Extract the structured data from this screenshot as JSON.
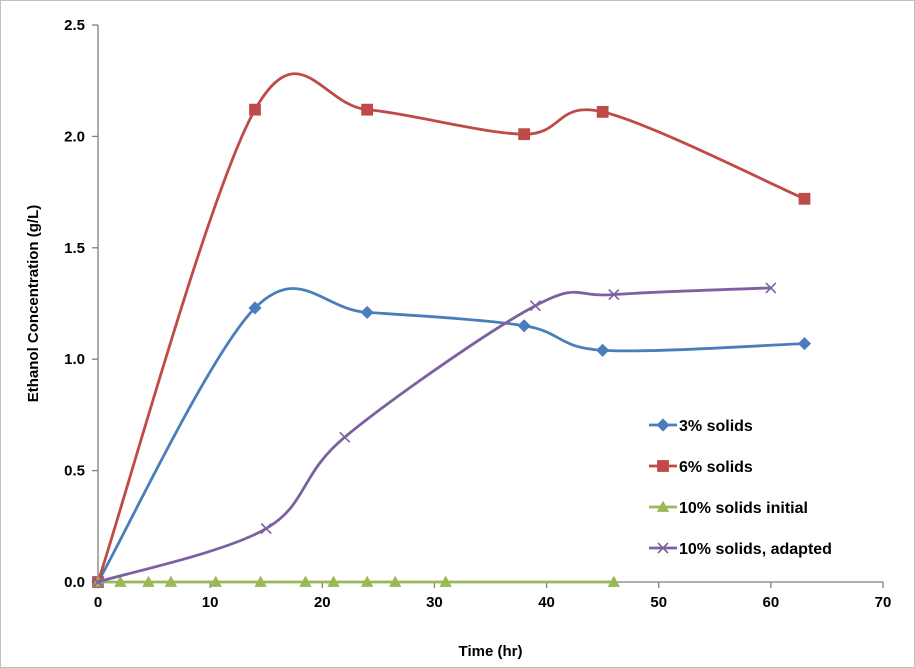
{
  "chart_data": {
    "type": "line",
    "title": "",
    "xlabel": "Time (hr)",
    "ylabel": "Ethanol Concentration (g/L)",
    "xlim": [
      0,
      70
    ],
    "ylim": [
      0,
      2.5
    ],
    "x_ticks": [
      0,
      10,
      20,
      30,
      40,
      50,
      60,
      70
    ],
    "y_ticks": [
      0,
      0.5,
      1.0,
      1.5,
      2.0,
      2.5
    ],
    "x_tick_labels": [
      "0",
      "10",
      "20",
      "30",
      "40",
      "50",
      "60",
      "70"
    ],
    "y_tick_labels": [
      "0.0",
      "0.5",
      "1.0",
      "1.5",
      "2.0",
      "2.5"
    ],
    "grid": false,
    "smooth_lines": true,
    "legend_position": "right",
    "series": [
      {
        "name": "3% solids",
        "color": "#4a7ebb",
        "marker": "diamond",
        "x": [
          0,
          14,
          24,
          38,
          45,
          63
        ],
        "y": [
          0.0,
          1.23,
          1.21,
          1.15,
          1.04,
          1.07
        ]
      },
      {
        "name": "6% solids",
        "color": "#be4b48",
        "marker": "square",
        "x": [
          0,
          14,
          24,
          38,
          45,
          63
        ],
        "y": [
          0.0,
          2.12,
          2.12,
          2.01,
          2.11,
          1.72
        ]
      },
      {
        "name": "10% solids initial",
        "color": "#98b954",
        "marker": "triangle",
        "x": [
          0,
          2,
          4.5,
          6.5,
          10.5,
          14.5,
          18.5,
          21,
          24,
          26.5,
          31,
          46
        ],
        "y": [
          0,
          0,
          0,
          0,
          0,
          0,
          0,
          0,
          0,
          0,
          0,
          0
        ]
      },
      {
        "name": "10% solids, adapted",
        "color": "#7d60a0",
        "marker": "x",
        "x": [
          0,
          15,
          22,
          39,
          46,
          60
        ],
        "y": [
          0.0,
          0.24,
          0.65,
          1.24,
          1.29,
          1.32
        ]
      }
    ]
  }
}
